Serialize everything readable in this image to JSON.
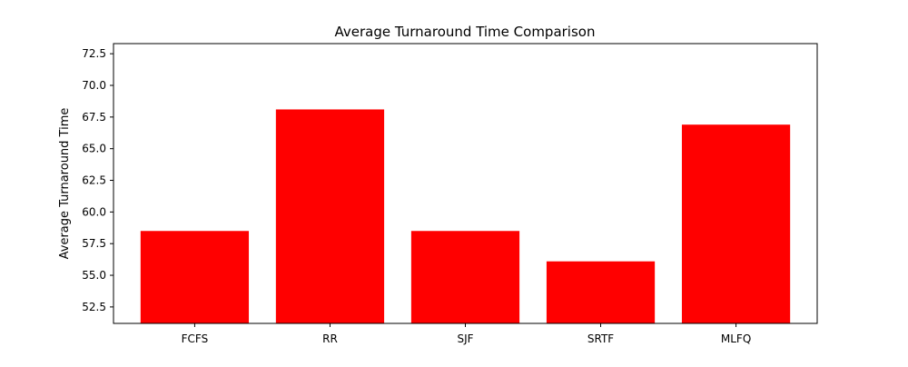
{
  "chart_data": {
    "type": "bar",
    "title": "Average Turnaround Time Comparison",
    "xlabel": "",
    "ylabel": "Average Turnaround Time",
    "categories": [
      "FCFS",
      "RR",
      "SJF",
      "SRTF",
      "MLFQ"
    ],
    "values": [
      58.5,
      68.1,
      58.5,
      56.1,
      66.9
    ],
    "ylim": [
      51.2,
      73.3
    ],
    "yticks": [
      "52.5",
      "55.0",
      "57.5",
      "60.0",
      "62.5",
      "65.0",
      "67.5",
      "70.0",
      "72.5"
    ],
    "bar_color": "#ff0000",
    "grid": false,
    "legend": "none"
  }
}
